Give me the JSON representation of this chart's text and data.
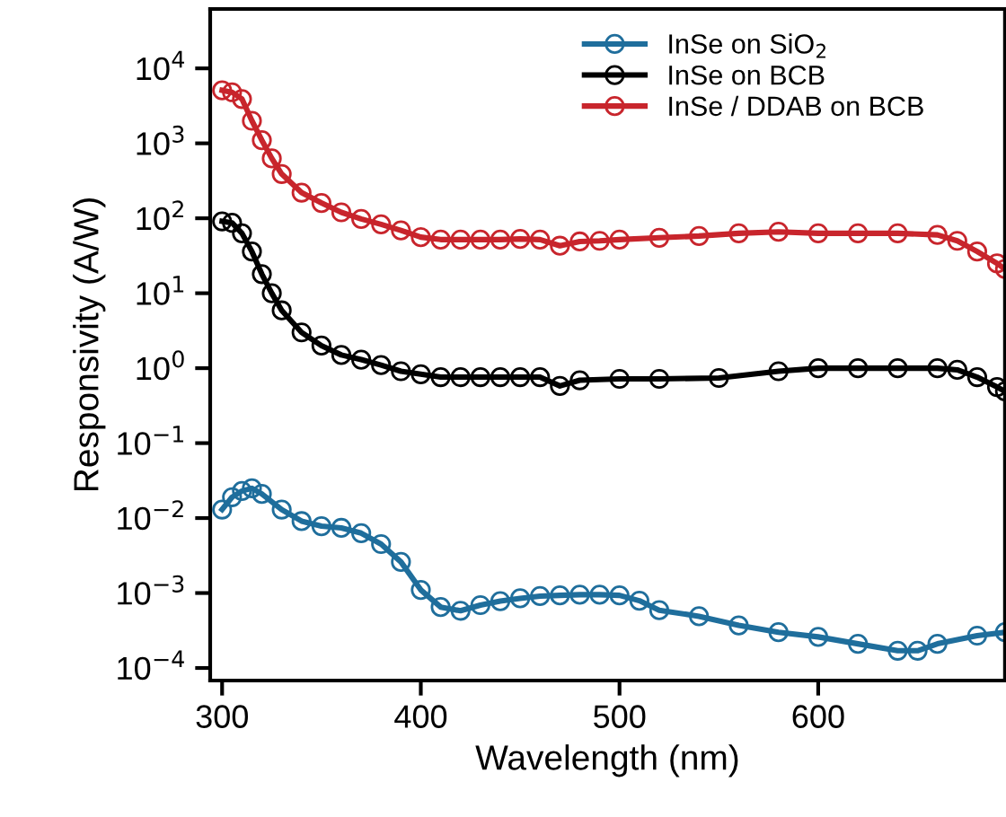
{
  "chart_data": {
    "type": "line",
    "xlabel": "Wavelength (nm)",
    "ylabel": "Responsivity (A/W)",
    "log": "y",
    "marker": "circle",
    "line_style": "solid",
    "legend": "top right",
    "grid": false,
    "xlim": [
      294,
      694
    ],
    "xticks": [
      300,
      400,
      500,
      600
    ],
    "ylim": [
      6.8e-05,
      62000
    ],
    "yticks": [
      {
        "value": 0.0001,
        "label": "10$^{−4}$"
      },
      {
        "value": 0.001,
        "label": "10$^{−3}$"
      },
      {
        "value": 0.01,
        "label": "10$^{−2}$"
      },
      {
        "value": 0.1,
        "label": "10$^{−1}$"
      },
      {
        "value": 1,
        "label": "10$^{0}$"
      },
      {
        "value": 10,
        "label": "10$^{1}$"
      },
      {
        "value": 100,
        "label": "10$^{2}$"
      },
      {
        "value": 1000,
        "label": "10$^{3}$"
      },
      {
        "value": 10000,
        "label": "10$^{4}$"
      }
    ],
    "series": [
      {
        "name": "InSe on SiO$_{2}$",
        "color": "#1f6e9c",
        "x": [
          300,
          305,
          310,
          315,
          320,
          330,
          340,
          350,
          360,
          370,
          380,
          390,
          400,
          410,
          420,
          430,
          440,
          450,
          460,
          470,
          480,
          490,
          500,
          510,
          520,
          540,
          560,
          580,
          600,
          620,
          640,
          650,
          660,
          680,
          694
        ],
        "values": [
          0.013,
          0.019,
          0.023,
          0.025,
          0.021,
          0.013,
          0.0091,
          0.0078,
          0.0074,
          0.0063,
          0.0045,
          0.0026,
          0.0011,
          0.00065,
          0.00058,
          0.00069,
          0.00078,
          0.00085,
          0.00091,
          0.00093,
          0.00095,
          0.00095,
          0.00093,
          0.00079,
          0.00059,
          0.00049,
          0.00037,
          0.0003,
          0.00026,
          0.00021,
          0.00017,
          0.00017,
          0.00021,
          0.00027,
          0.0003
        ]
      },
      {
        "name": "InSe on BCB",
        "color": "#000000",
        "x": [
          300,
          305,
          310,
          315,
          320,
          325,
          330,
          340,
          350,
          360,
          370,
          380,
          390,
          400,
          410,
          420,
          430,
          440,
          450,
          460,
          470,
          480,
          500,
          520,
          550,
          580,
          600,
          620,
          640,
          660,
          670,
          680,
          690,
          694
        ],
        "values": [
          91,
          87,
          63,
          36,
          18,
          10,
          5.9,
          3.0,
          2.0,
          1.5,
          1.3,
          1.1,
          0.91,
          0.83,
          0.76,
          0.76,
          0.76,
          0.76,
          0.76,
          0.76,
          0.58,
          0.69,
          0.72,
          0.72,
          0.74,
          0.91,
          1.0,
          1.0,
          1.0,
          1.0,
          0.95,
          0.76,
          0.56,
          0.49
        ]
      },
      {
        "name": "InSe / DDAB on BCB",
        "color": "#c8252c",
        "x": [
          300,
          305,
          310,
          315,
          320,
          325,
          330,
          340,
          350,
          360,
          370,
          380,
          390,
          400,
          410,
          420,
          430,
          440,
          450,
          460,
          470,
          480,
          490,
          500,
          520,
          540,
          560,
          580,
          600,
          620,
          640,
          660,
          670,
          680,
          690,
          694
        ],
        "values": [
          5100,
          4800,
          3900,
          2000,
          1100,
          630,
          390,
          220,
          160,
          120,
          98,
          83,
          69,
          56,
          52,
          52,
          52,
          52,
          53,
          52,
          43,
          49,
          50,
          52,
          55,
          58,
          63,
          66,
          63,
          63,
          63,
          60,
          50,
          36,
          25,
          21
        ]
      }
    ]
  }
}
